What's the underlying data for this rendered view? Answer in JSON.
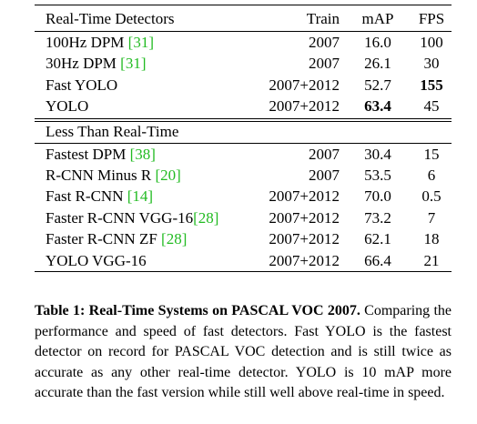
{
  "table": {
    "header": {
      "name": "Real-Time Detectors",
      "train": "Train",
      "map": "mAP",
      "fps": "FPS"
    },
    "groups": [
      {
        "rows": [
          {
            "name": "100Hz DPM ",
            "cite": "[31]",
            "train": "2007",
            "map": "16.0",
            "fps": "100"
          },
          {
            "name": "30Hz DPM ",
            "cite": "[31]",
            "train": "2007",
            "map": "26.1",
            "fps": "30"
          },
          {
            "name": "Fast YOLO",
            "train": "2007+2012",
            "map": "52.7",
            "fps": "155",
            "bold": "fps"
          },
          {
            "name": "YOLO",
            "train": "2007+2012",
            "map": "63.4",
            "fps": "45",
            "bold": "map"
          }
        ]
      },
      {
        "title": "Less Than Real-Time",
        "rows": [
          {
            "name": "Fastest DPM ",
            "cite": "[38]",
            "train": "2007",
            "map": "30.4",
            "fps": "15"
          },
          {
            "name": "R-CNN Minus R ",
            "cite": "[20]",
            "train": "2007",
            "map": "53.5",
            "fps": "6"
          },
          {
            "name": "Fast R-CNN ",
            "cite": "[14]",
            "train": "2007+2012",
            "map": "70.0",
            "fps": "0.5"
          },
          {
            "name": "Faster R-CNN VGG-16",
            "cite": "[28]",
            "train": "2007+2012",
            "map": "73.2",
            "fps": "7"
          },
          {
            "name": "Faster R-CNN ZF ",
            "cite": "[28]",
            "train": "2007+2012",
            "map": "62.1",
            "fps": "18"
          },
          {
            "name": "YOLO VGG-16",
            "train": "2007+2012",
            "map": "66.4",
            "fps": "21"
          }
        ]
      }
    ]
  },
  "caption": {
    "label": "Table 1:",
    "title": "Real-Time Systems on PASCAL VOC 2007.",
    "text": "Comparing the performance and speed of fast detectors. Fast YOLO is the fastest detector on record for PASCAL VOC detection and is still twice as accurate as any other real-time detector. YOLO is 10 mAP more accurate than the fast version while still well above real-time in speed."
  }
}
